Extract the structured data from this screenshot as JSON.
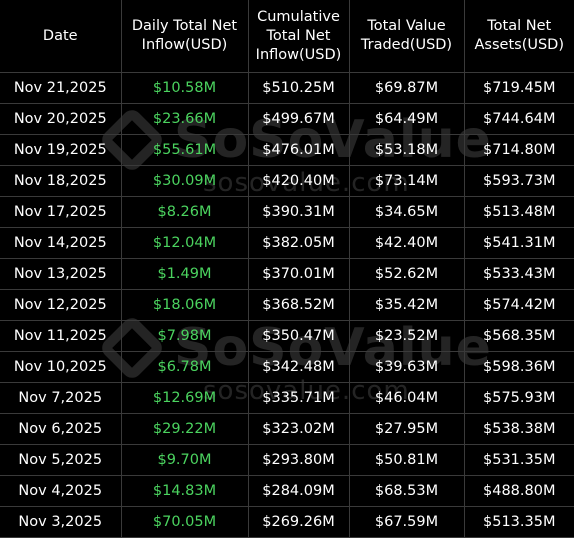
{
  "table": {
    "headers": {
      "date": "Date",
      "daily_inflow_line1": "Daily Total Net",
      "daily_inflow_line2": "Inflow(USD)",
      "cumulative_line1": "Cumulative",
      "cumulative_line2": "Total Net",
      "cumulative_line3": "Inflow(USD)",
      "traded_line1": "Total Value",
      "traded_line2": "Traded(USD)",
      "assets_line1": "Total Net",
      "assets_line2": "Assets(USD)"
    },
    "rows": [
      {
        "date": "Nov 21,2025",
        "daily": "$10.58M",
        "cumulative": "$510.25M",
        "traded": "$69.87M",
        "assets": "$719.45M"
      },
      {
        "date": "Nov 20,2025",
        "daily": "$23.66M",
        "cumulative": "$499.67M",
        "traded": "$64.49M",
        "assets": "$744.64M"
      },
      {
        "date": "Nov 19,2025",
        "daily": "$55.61M",
        "cumulative": "$476.01M",
        "traded": "$53.18M",
        "assets": "$714.80M"
      },
      {
        "date": "Nov 18,2025",
        "daily": "$30.09M",
        "cumulative": "$420.40M",
        "traded": "$73.14M",
        "assets": "$593.73M"
      },
      {
        "date": "Nov 17,2025",
        "daily": "$8.26M",
        "cumulative": "$390.31M",
        "traded": "$34.65M",
        "assets": "$513.48M"
      },
      {
        "date": "Nov 14,2025",
        "daily": "$12.04M",
        "cumulative": "$382.05M",
        "traded": "$42.40M",
        "assets": "$541.31M"
      },
      {
        "date": "Nov 13,2025",
        "daily": "$1.49M",
        "cumulative": "$370.01M",
        "traded": "$52.62M",
        "assets": "$533.43M"
      },
      {
        "date": "Nov 12,2025",
        "daily": "$18.06M",
        "cumulative": "$368.52M",
        "traded": "$35.42M",
        "assets": "$574.42M"
      },
      {
        "date": "Nov 11,2025",
        "daily": "$7.98M",
        "cumulative": "$350.47M",
        "traded": "$23.52M",
        "assets": "$568.35M"
      },
      {
        "date": "Nov 10,2025",
        "daily": "$6.78M",
        "cumulative": "$342.48M",
        "traded": "$39.63M",
        "assets": "$598.36M"
      },
      {
        "date": "Nov 7,2025",
        "daily": "$12.69M",
        "cumulative": "$335.71M",
        "traded": "$46.04M",
        "assets": "$575.93M"
      },
      {
        "date": "Nov 6,2025",
        "daily": "$29.22M",
        "cumulative": "$323.02M",
        "traded": "$27.95M",
        "assets": "$538.38M"
      },
      {
        "date": "Nov 5,2025",
        "daily": "$9.70M",
        "cumulative": "$293.80M",
        "traded": "$50.81M",
        "assets": "$531.35M"
      },
      {
        "date": "Nov 4,2025",
        "daily": "$14.83M",
        "cumulative": "$284.09M",
        "traded": "$68.53M",
        "assets": "$488.80M"
      },
      {
        "date": "Nov 3,2025",
        "daily": "$70.05M",
        "cumulative": "$269.26M",
        "traded": "$67.59M",
        "assets": "$513.35M"
      }
    ]
  },
  "watermark": {
    "brand": "SoSoValue",
    "domain": "sosovalue.com",
    "icon": "sosovalue-logo-icon"
  },
  "colors": {
    "background": "#000000",
    "text": "#ffffff",
    "inflow_positive": "#4bd35f",
    "grid_line": "#3a3a3a"
  }
}
